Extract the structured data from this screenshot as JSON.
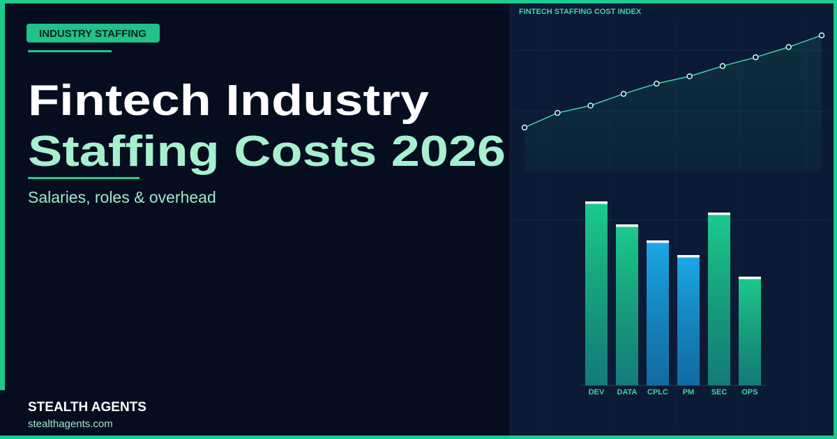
{
  "badge": "INDUSTRY STAFFING",
  "title_line1": "Fintech Industry",
  "title_line2": "Staffing Costs 2026",
  "subtitle": "Salaries, roles & overhead",
  "brand": "STEALTH AGENTS",
  "url": "stealthagents.com",
  "chart_data": [
    {
      "type": "line",
      "title": "FINTECH STAFFING COST INDEX",
      "values": [
        30,
        40,
        45,
        53,
        60,
        65,
        72,
        78,
        85,
        93
      ],
      "color": "#3fd6a6",
      "ylim": [
        0,
        100
      ],
      "grid": true
    },
    {
      "type": "bar",
      "categories": [
        "DEV",
        "DATA",
        "CPLC",
        "PM",
        "SEC",
        "OPS"
      ],
      "values": [
        264,
        231,
        208,
        187,
        248,
        156
      ],
      "colors": [
        "#1ccb8e",
        "#1ccb8e",
        "#1aa8e8",
        "#1aa8e8",
        "#1ccb8e",
        "#1ccb8e"
      ],
      "ylim": [
        0,
        300
      ],
      "grid": true
    }
  ]
}
